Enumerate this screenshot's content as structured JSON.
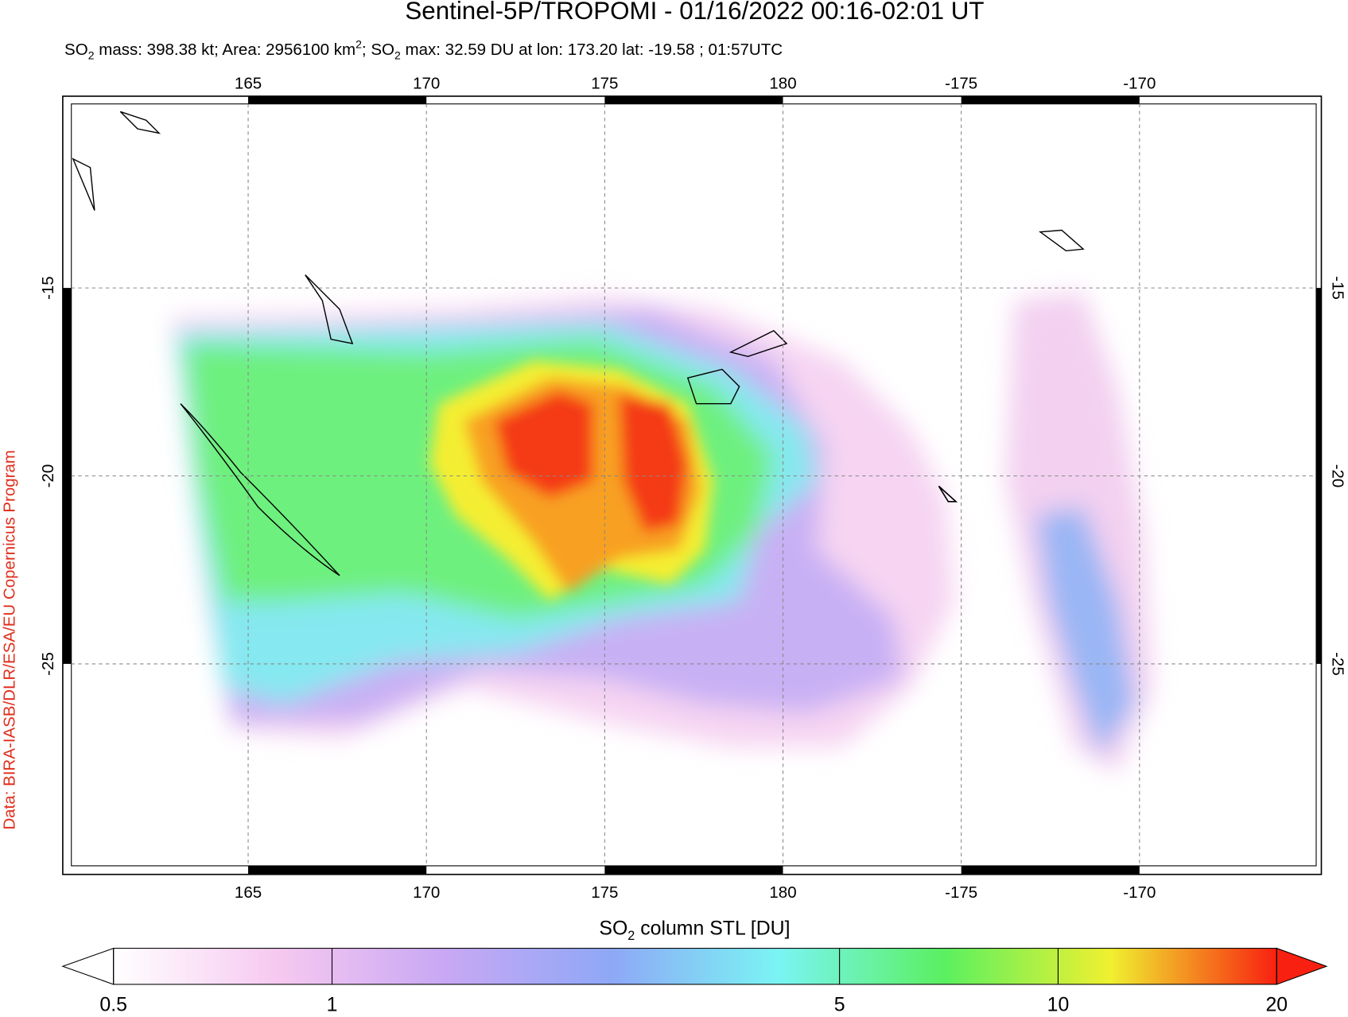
{
  "title": "Sentinel-5P/TROPOMI - 01/16/2022 00:16-02:01 UT",
  "subtitle": [
    "SO",
    "2",
    " mass: 398.38 kt; Area: 2956100 km",
    "2",
    "; SO",
    "2",
    " max: 32.59 DU at lon: 173.20 lat: -19.58 ; 01:57UTC"
  ],
  "credit": "Data: BIRA-IASB/DLR/ESA/EU Copernicus Program",
  "map": {
    "xlim": [
      159.8,
      195.1
    ],
    "ylim": [
      -30.6,
      -9.9
    ],
    "xticks": [
      165,
      170,
      175,
      180,
      {
        "value": 185,
        "label": "-175"
      },
      {
        "value": 190,
        "label": "-170"
      }
    ],
    "yticks": [
      -15,
      -20,
      -25
    ],
    "grid": true
  },
  "colorbar": {
    "label": [
      "SO",
      "2",
      " column STL [DU]"
    ],
    "scale": "log",
    "lim": [
      0.5,
      20
    ],
    "ticks": [
      0.5,
      1,
      5,
      10,
      20
    ],
    "colors": [
      "#ffffff",
      "#f6c8f0",
      "#c8a8f4",
      "#8ea8f6",
      "#7af4f4",
      "#5af060",
      "#f0f030",
      "#f82010"
    ]
  }
}
